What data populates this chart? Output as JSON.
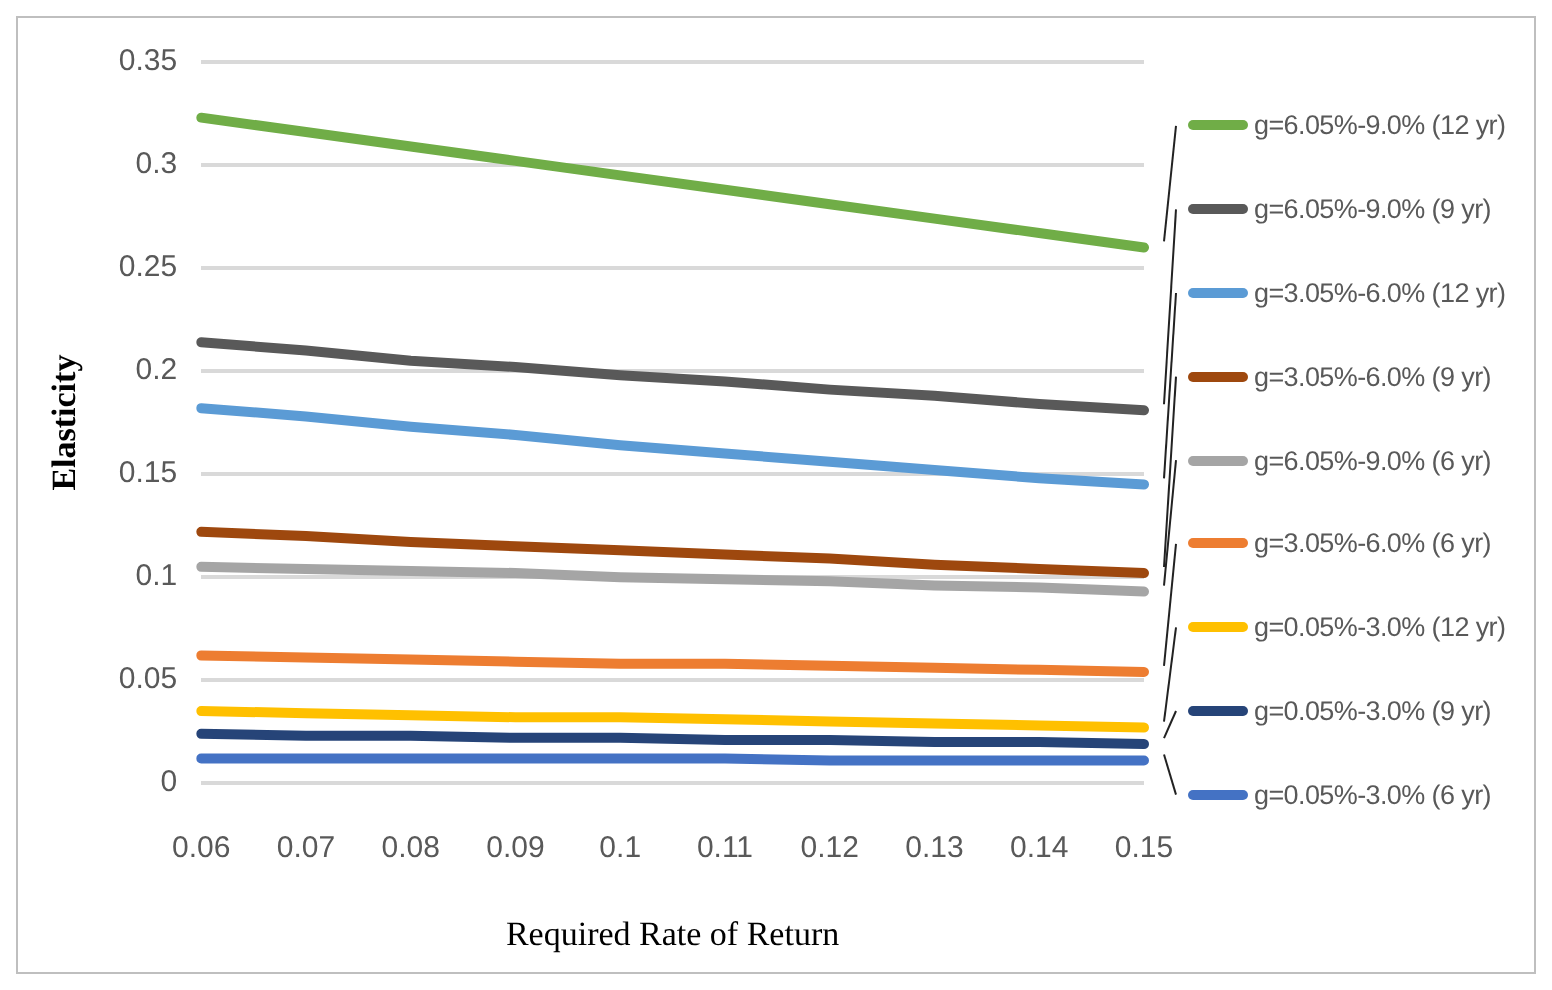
{
  "chart_data": {
    "type": "line",
    "xlabel": "Required Rate of Return",
    "ylabel": "Elasticity",
    "categories": [
      "0.06",
      "0.07",
      "0.08",
      "0.09",
      "0.1",
      "0.11",
      "0.12",
      "0.13",
      "0.14",
      "0.15"
    ],
    "ylim": [
      0,
      0.35
    ],
    "yticks": [
      0,
      0.05,
      0.1,
      0.15,
      0.2,
      0.25,
      0.3,
      0.35
    ],
    "grid": "y",
    "legend": "right",
    "marker": "none",
    "series": [
      {
        "name": "g=6.05%-9.0% (12 yr)",
        "color": "#70ad47",
        "values": [
          0.323,
          0.316,
          0.309,
          0.302,
          0.295,
          0.288,
          0.281,
          0.274,
          0.267,
          0.26
        ]
      },
      {
        "name": "g=6.05%-9.0% (9 yr)",
        "color": "#595959",
        "values": [
          0.214,
          0.21,
          0.205,
          0.202,
          0.198,
          0.195,
          0.191,
          0.188,
          0.184,
          0.181
        ]
      },
      {
        "name": "g=3.05%-6.0% (12 yr)",
        "color": "#5b9bd5",
        "values": [
          0.182,
          0.178,
          0.173,
          0.169,
          0.164,
          0.16,
          0.156,
          0.152,
          0.148,
          0.145
        ]
      },
      {
        "name": "g=3.05%-6.0% (9 yr)",
        "color": "#9e480e",
        "values": [
          0.122,
          0.12,
          0.117,
          0.115,
          0.113,
          0.111,
          0.109,
          0.106,
          0.104,
          0.102
        ]
      },
      {
        "name": "g=6.05%-9.0% (6 yr)",
        "color": "#a5a5a5",
        "values": [
          0.105,
          0.104,
          0.103,
          0.102,
          0.1,
          0.099,
          0.098,
          0.096,
          0.095,
          0.093
        ]
      },
      {
        "name": "g=3.05%-6.0% (6 yr)",
        "color": "#ed7d31",
        "values": [
          0.062,
          0.061,
          0.06,
          0.059,
          0.058,
          0.058,
          0.057,
          0.056,
          0.055,
          0.054
        ]
      },
      {
        "name": "g=0.05%-3.0% (12 yr)",
        "color": "#ffc000",
        "values": [
          0.035,
          0.034,
          0.033,
          0.032,
          0.032,
          0.031,
          0.03,
          0.029,
          0.028,
          0.027
        ]
      },
      {
        "name": "g=0.05%-3.0% (9 yr)",
        "color": "#264478",
        "values": [
          0.024,
          0.023,
          0.023,
          0.022,
          0.022,
          0.021,
          0.021,
          0.02,
          0.02,
          0.019
        ]
      },
      {
        "name": "g=0.05%-3.0% (6 yr)",
        "color": "#4472c4",
        "values": [
          0.012,
          0.012,
          0.012,
          0.012,
          0.012,
          0.012,
          0.011,
          0.011,
          0.011,
          0.011
        ]
      }
    ]
  }
}
